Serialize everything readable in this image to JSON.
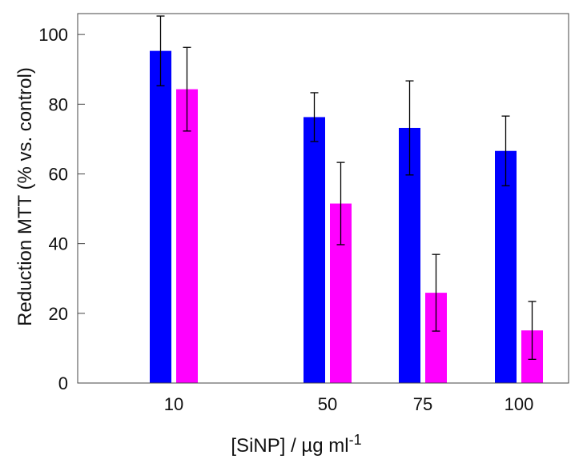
{
  "chart_data": {
    "type": "bar",
    "categories": [
      "10",
      "50",
      "75",
      "100"
    ],
    "series": [
      {
        "color": "#0000ff",
        "values": [
          95.3,
          76.3,
          73.2,
          66.6
        ],
        "errors": [
          10,
          7,
          13.5,
          10
        ]
      },
      {
        "color": "#ff00ff",
        "values": [
          84.3,
          51.5,
          25.9,
          15.1
        ],
        "errors": [
          12,
          11.8,
          11,
          8.3
        ]
      }
    ],
    "ylabel": "Reduction MTT (% vs. control)",
    "xlabel_main": "[SiNP] / µg ml",
    "xlabel_exp": "-1",
    "ylim": [
      0,
      106
    ],
    "yticks": [
      0,
      20,
      40,
      60,
      80,
      100
    ]
  }
}
